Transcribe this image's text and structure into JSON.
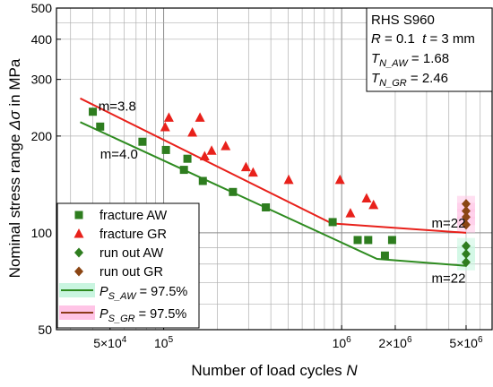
{
  "chart_data": {
    "type": "scatter",
    "xscale": "log",
    "yscale": "log",
    "xlim": [
      25000,
      7000000
    ],
    "ylim": [
      50,
      500
    ],
    "xlabel_prefix": "Number of load cycles ",
    "xlabel_var": "N",
    "ylabel_prefix": "Nominal stress range ",
    "ylabel_var": "Δσ",
    "ylabel_suffix": " in MPa",
    "y_ticks": [
      {
        "value": 50,
        "label": "50"
      },
      {
        "value": 100,
        "label": "100"
      },
      {
        "value": 200,
        "label": "200"
      },
      {
        "value": 300,
        "label": "300"
      },
      {
        "value": 400,
        "label": "400"
      },
      {
        "value": 500,
        "label": "500"
      }
    ],
    "x_ticks": [
      {
        "value": 50000,
        "mant": "5×10",
        "exp": "4"
      },
      {
        "value": 100000,
        "mant": "10",
        "exp": "5"
      },
      {
        "value": 1000000,
        "mant": "10",
        "exp": "6"
      },
      {
        "value": 2000000,
        "mant": "2×10",
        "exp": "6"
      },
      {
        "value": 5000000,
        "mant": "5×10",
        "exp": "6"
      }
    ],
    "colors": {
      "aw": "#2e7d1f",
      "gr": "#e8211b",
      "runout_gr": "#8b4513",
      "line_aw": "#2e8b20",
      "line_gr": "#e8211b",
      "band_aw": "#c9f5e0",
      "band_gr": "#ffc4e6"
    },
    "series": [
      {
        "name": "fracture AW",
        "marker": "square",
        "color_key": "aw",
        "points": [
          [
            40000,
            238
          ],
          [
            44000,
            214
          ],
          [
            76000,
            192
          ],
          [
            103000,
            181
          ],
          [
            130000,
            157
          ],
          [
            136000,
            170
          ],
          [
            166000,
            145
          ],
          [
            245000,
            134
          ],
          [
            375000,
            120
          ],
          [
            890000,
            108
          ],
          [
            1230000,
            95
          ],
          [
            1410000,
            95
          ],
          [
            1750000,
            85
          ],
          [
            1920000,
            95
          ]
        ]
      },
      {
        "name": "fracture GR",
        "marker": "triangle",
        "color_key": "gr",
        "points": [
          [
            102000,
            213
          ],
          [
            107000,
            228
          ],
          [
            145000,
            205
          ],
          [
            160000,
            228
          ],
          [
            170000,
            173
          ],
          [
            186000,
            180
          ],
          [
            223000,
            186
          ],
          [
            290000,
            160
          ],
          [
            318000,
            154
          ],
          [
            504000,
            146
          ],
          [
            978000,
            146
          ],
          [
            1120000,
            115
          ],
          [
            1380000,
            128
          ],
          [
            1510000,
            122
          ]
        ]
      },
      {
        "name": "run out AW",
        "marker": "diamond",
        "color_key": "aw",
        "points": [
          [
            5000000,
            91
          ],
          [
            5000000,
            86
          ],
          [
            5000000,
            81
          ]
        ]
      },
      {
        "name": "run out GR",
        "marker": "diamond",
        "color_key": "runout_gr",
        "points": [
          [
            5000000,
            123
          ],
          [
            5000000,
            117
          ],
          [
            5000000,
            112
          ],
          [
            5000000,
            106
          ]
        ]
      }
    ],
    "curves": [
      {
        "name_main": "P",
        "name_sub": "S_AW",
        "name_tail": " = 97.5%",
        "color_key": "line_aw",
        "points": [
          [
            34000,
            221
          ],
          [
            1580000,
            83
          ],
          [
            5000000,
            79
          ]
        ]
      },
      {
        "name_main": "P",
        "name_sub": "S_GR",
        "name_tail": " = 97.5%",
        "color_key": "line_gr",
        "points": [
          [
            34000,
            262
          ],
          [
            880000,
            107
          ],
          [
            5000000,
            100
          ]
        ]
      }
    ],
    "slope_labels": [
      {
        "text": "m=3.8",
        "x": 43000,
        "y": 240
      },
      {
        "text": "m=4.0",
        "x": 44000,
        "y": 170
      },
      {
        "text": "m=22",
        "x": 3200000,
        "y": 104
      },
      {
        "text": "m=22",
        "x": 3200000,
        "y": 70
      }
    ],
    "info_box": {
      "title": "RHS S960",
      "line2_R": "R",
      "line2_mid": " = 0.1  ",
      "line2_t": "t",
      "line2_end": " = 3 mm",
      "line3_main": "T",
      "line3_sub": "N_AW",
      "line3_val": " = 1.68",
      "line4_main": "T",
      "line4_sub": "N_GR",
      "line4_val": " = 2.46"
    },
    "legend_position": "left"
  }
}
